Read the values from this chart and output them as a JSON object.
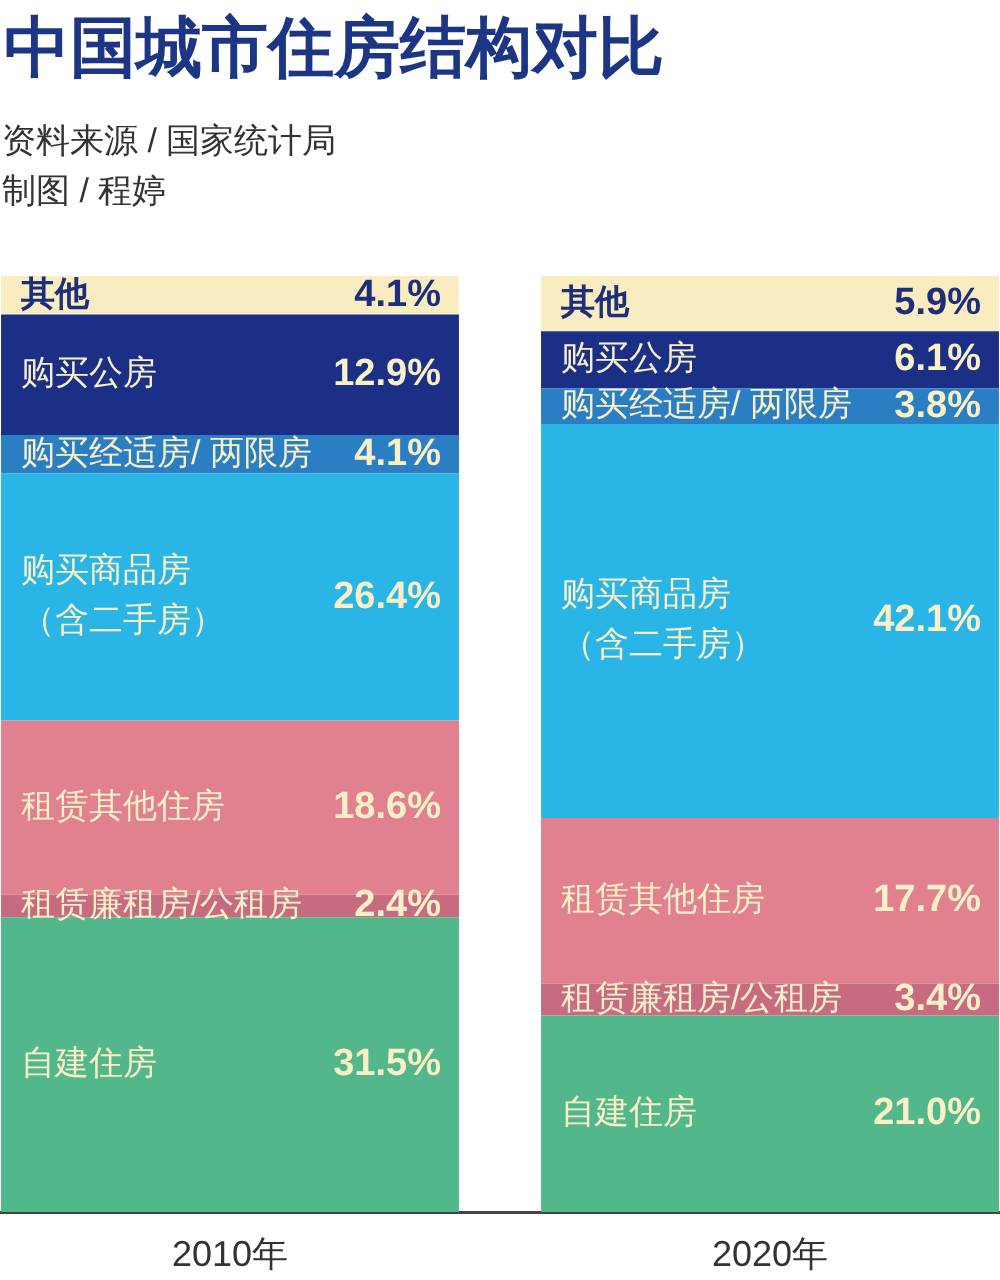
{
  "chart_data": {
    "type": "bar",
    "stacked": true,
    "title": "中国城市住房结构对比",
    "annotations": [
      "资料来源 / 国家统计局",
      "制图 / 程婷"
    ],
    "categories": [
      "2010年",
      "2020年"
    ],
    "ylim": [
      0,
      100
    ],
    "tick_labels": "x",
    "legend": false,
    "grid": false,
    "series": [
      {
        "name": "自建住房",
        "color": "#52b78a",
        "values": [
          31.5,
          21.0
        ],
        "value_labels": [
          "31.5%",
          "21.0%"
        ]
      },
      {
        "name": "租赁廉租房/公租房",
        "color": "#c66b80",
        "values": [
          2.4,
          3.4
        ],
        "value_labels": [
          "2.4%",
          "3.4%"
        ]
      },
      {
        "name": "租赁其他住房",
        "color": "#e1808f",
        "values": [
          18.6,
          17.7
        ],
        "value_labels": [
          "18.6%",
          "17.7%"
        ]
      },
      {
        "name": "购买商品房（含二手房）",
        "color": "#29b5e6",
        "values": [
          26.4,
          42.1
        ],
        "value_labels": [
          "26.4%",
          "42.1%"
        ]
      },
      {
        "name": "购买经适房/ 两限房",
        "color": "#2a7fc4",
        "values": [
          4.1,
          3.8
        ],
        "value_labels": [
          "4.1%",
          "3.8%"
        ]
      },
      {
        "name": "购买公房",
        "color": "#1b2f86",
        "values": [
          12.9,
          6.1
        ],
        "value_labels": [
          "12.9%",
          "6.1%"
        ]
      },
      {
        "name": "其他",
        "color": "#f8ecc0",
        "values": [
          4.1,
          5.9
        ],
        "value_labels": [
          "4.1%",
          "5.9%"
        ]
      }
    ]
  }
}
